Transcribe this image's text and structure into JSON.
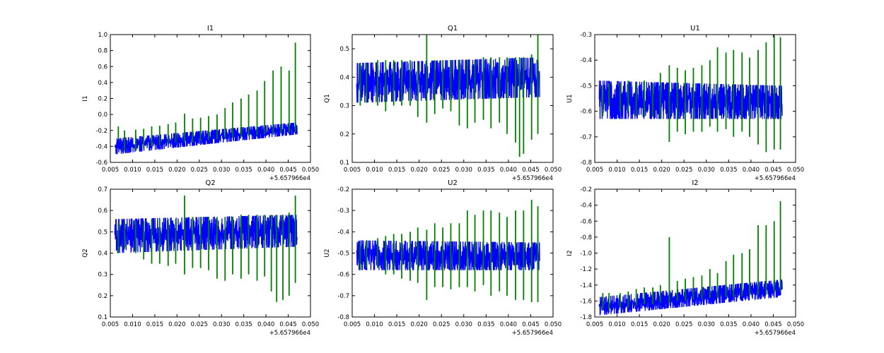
{
  "figure": {
    "x_offset_label": "+5.657966e4",
    "line_colors": {
      "primary": "#0000ff",
      "secondary": "#008000"
    }
  },
  "chart_data": [
    {
      "type": "line",
      "title": "I1",
      "ylabel": "I1",
      "xlim": [
        0.005,
        0.05
      ],
      "ylim": [
        -0.6,
        1.0
      ],
      "xticks": [
        "0.005",
        "0.010",
        "0.015",
        "0.020",
        "0.025",
        "0.030",
        "0.035",
        "0.040",
        "0.045",
        "0.050"
      ],
      "yticks": [
        "-0.6",
        "-0.4",
        "-0.2",
        "0.0",
        "0.2",
        "0.4",
        "0.6",
        "0.8",
        "1.0"
      ],
      "series": [
        {
          "values": {
            "x_range": [
              0.006,
              0.047
            ],
            "band_start": [
              -0.5,
              -0.3
            ],
            "band_end": [
              -0.25,
              -0.1
            ]
          }
        },
        {
          "values": {
            "spikes": [
              [
                0.0068,
                -0.3,
                -0.15
              ],
              [
                0.0082,
                -0.45,
                -0.2
              ],
              [
                0.0107,
                -0.45,
                -0.19
              ],
              [
                0.0125,
                -0.42,
                -0.18
              ],
              [
                0.0143,
                -0.4,
                -0.15
              ],
              [
                0.0161,
                -0.38,
                -0.14
              ],
              [
                0.018,
                -0.36,
                -0.12
              ],
              [
                0.0197,
                -0.35,
                -0.1
              ],
              [
                0.0217,
                -0.35,
                0.01
              ],
              [
                0.0235,
                -0.35,
                -0.05
              ],
              [
                0.0253,
                -0.33,
                -0.04
              ],
              [
                0.0271,
                -0.32,
                -0.02
              ],
              [
                0.029,
                -0.31,
                0.0
              ],
              [
                0.0308,
                -0.3,
                0.08
              ],
              [
                0.0325,
                -0.29,
                0.15
              ],
              [
                0.0344,
                -0.28,
                0.2
              ],
              [
                0.0361,
                -0.27,
                0.25
              ],
              [
                0.038,
                -0.26,
                0.3
              ],
              [
                0.0397,
                -0.25,
                0.42
              ],
              [
                0.0416,
                -0.24,
                0.55
              ],
              [
                0.0434,
                -0.23,
                0.6
              ],
              [
                0.0452,
                -0.22,
                0.55
              ],
              [
                0.0466,
                -0.22,
                0.9
              ]
            ]
          }
        }
      ]
    },
    {
      "type": "line",
      "title": "Q1",
      "ylabel": "Q1",
      "xlim": [
        0.005,
        0.05
      ],
      "ylim": [
        0.1,
        0.55
      ],
      "xticks": [
        "0.005",
        "0.010",
        "0.015",
        "0.020",
        "0.025",
        "0.030",
        "0.035",
        "0.040",
        "0.045",
        "0.050"
      ],
      "yticks": [
        "0.1",
        "0.2",
        "0.3",
        "0.4",
        "0.5"
      ],
      "series": [
        {
          "values": {
            "x_range": [
              0.006,
              0.047
            ],
            "band_start": [
              0.31,
              0.45
            ],
            "band_end": [
              0.33,
              0.47
            ]
          }
        },
        {
          "values": {
            "spikes": [
              [
                0.0068,
                0.3,
                0.45
              ],
              [
                0.0082,
                0.31,
                0.45
              ],
              [
                0.0107,
                0.3,
                0.46
              ],
              [
                0.0125,
                0.28,
                0.46
              ],
              [
                0.0143,
                0.3,
                0.46
              ],
              [
                0.0161,
                0.3,
                0.46
              ],
              [
                0.018,
                0.3,
                0.46
              ],
              [
                0.0197,
                0.26,
                0.45
              ],
              [
                0.0217,
                0.24,
                0.55
              ],
              [
                0.0235,
                0.27,
                0.46
              ],
              [
                0.0253,
                0.29,
                0.46
              ],
              [
                0.0271,
                0.28,
                0.46
              ],
              [
                0.029,
                0.23,
                0.46
              ],
              [
                0.0308,
                0.22,
                0.46
              ],
              [
                0.0325,
                0.24,
                0.46
              ],
              [
                0.0344,
                0.25,
                0.47
              ],
              [
                0.0361,
                0.22,
                0.47
              ],
              [
                0.038,
                0.24,
                0.47
              ],
              [
                0.0397,
                0.2,
                0.47
              ],
              [
                0.0416,
                0.17,
                0.47
              ],
              [
                0.0425,
                0.12,
                0.47
              ],
              [
                0.0434,
                0.13,
                0.47
              ],
              [
                0.0452,
                0.18,
                0.48
              ],
              [
                0.0466,
                0.2,
                0.55
              ]
            ]
          }
        }
      ]
    },
    {
      "type": "line",
      "title": "U1",
      "ylabel": "U1",
      "xlim": [
        0.005,
        0.05
      ],
      "ylim": [
        -0.8,
        -0.3
      ],
      "xticks": [
        "0.005",
        "0.010",
        "0.015",
        "0.020",
        "0.025",
        "0.030",
        "0.035",
        "0.040",
        "0.045",
        "0.050"
      ],
      "yticks": [
        "-0.8",
        "-0.7",
        "-0.6",
        "-0.5",
        "-0.4",
        "-0.3"
      ],
      "series": [
        {
          "values": {
            "x_range": [
              0.006,
              0.047
            ],
            "band_start": [
              -0.63,
              -0.48
            ],
            "band_end": [
              -0.63,
              -0.5
            ]
          }
        },
        {
          "values": {
            "spikes": [
              [
                0.0068,
                -0.62,
                -0.5
              ],
              [
                0.0082,
                -0.58,
                -0.49
              ],
              [
                0.0107,
                -0.6,
                -0.49
              ],
              [
                0.0125,
                -0.6,
                -0.48
              ],
              [
                0.0143,
                -0.62,
                -0.49
              ],
              [
                0.0161,
                -0.62,
                -0.48
              ],
              [
                0.018,
                -0.62,
                -0.49
              ],
              [
                0.0197,
                -0.63,
                -0.45
              ],
              [
                0.0217,
                -0.72,
                -0.42
              ],
              [
                0.0235,
                -0.68,
                -0.43
              ],
              [
                0.0253,
                -0.69,
                -0.44
              ],
              [
                0.0271,
                -0.68,
                -0.43
              ],
              [
                0.029,
                -0.68,
                -0.42
              ],
              [
                0.0308,
                -0.66,
                -0.4
              ],
              [
                0.0325,
                -0.68,
                -0.35
              ],
              [
                0.0344,
                -0.67,
                -0.37
              ],
              [
                0.0361,
                -0.7,
                -0.36
              ],
              [
                0.038,
                -0.68,
                -0.37
              ],
              [
                0.0397,
                -0.7,
                -0.39
              ],
              [
                0.0416,
                -0.73,
                -0.36
              ],
              [
                0.0434,
                -0.76,
                -0.33
              ],
              [
                0.0452,
                -0.75,
                -0.3
              ],
              [
                0.0466,
                -0.75,
                -0.31
              ]
            ]
          }
        }
      ]
    },
    {
      "type": "line",
      "title": "Q2",
      "ylabel": "Q2",
      "xlim": [
        0.005,
        0.05
      ],
      "ylim": [
        0.1,
        0.7
      ],
      "xticks": [
        "0.005",
        "0.010",
        "0.015",
        "0.020",
        "0.025",
        "0.030",
        "0.035",
        "0.040",
        "0.045",
        "0.050"
      ],
      "yticks": [
        "0.1",
        "0.2",
        "0.3",
        "0.4",
        "0.5",
        "0.6",
        "0.7"
      ],
      "series": [
        {
          "values": {
            "x_range": [
              0.006,
              0.047
            ],
            "band_start": [
              0.4,
              0.56
            ],
            "band_end": [
              0.43,
              0.58
            ]
          }
        },
        {
          "values": {
            "spikes": [
              [
                0.0068,
                0.4,
                0.54
              ],
              [
                0.0082,
                0.42,
                0.55
              ],
              [
                0.0107,
                0.4,
                0.55
              ],
              [
                0.0125,
                0.37,
                0.55
              ],
              [
                0.0143,
                0.35,
                0.56
              ],
              [
                0.0161,
                0.35,
                0.56
              ],
              [
                0.018,
                0.34,
                0.56
              ],
              [
                0.0197,
                0.35,
                0.56
              ],
              [
                0.0217,
                0.3,
                0.67
              ],
              [
                0.0235,
                0.33,
                0.57
              ],
              [
                0.0253,
                0.33,
                0.57
              ],
              [
                0.0271,
                0.32,
                0.57
              ],
              [
                0.029,
                0.28,
                0.57
              ],
              [
                0.0308,
                0.27,
                0.57
              ],
              [
                0.0325,
                0.3,
                0.57
              ],
              [
                0.0344,
                0.28,
                0.58
              ],
              [
                0.0361,
                0.3,
                0.58
              ],
              [
                0.038,
                0.27,
                0.58
              ],
              [
                0.0397,
                0.29,
                0.58
              ],
              [
                0.0412,
                0.22,
                0.58
              ],
              [
                0.0424,
                0.17,
                0.58
              ],
              [
                0.0438,
                0.18,
                0.58
              ],
              [
                0.0452,
                0.2,
                0.59
              ],
              [
                0.0466,
                0.26,
                0.67
              ]
            ]
          }
        }
      ]
    },
    {
      "type": "line",
      "title": "U2",
      "ylabel": "U2",
      "xlim": [
        0.005,
        0.05
      ],
      "ylim": [
        -0.8,
        -0.2
      ],
      "xticks": [
        "0.005",
        "0.010",
        "0.015",
        "0.020",
        "0.025",
        "0.030",
        "0.035",
        "0.040",
        "0.045",
        "0.050"
      ],
      "yticks": [
        "-0.8",
        "-0.7",
        "-0.6",
        "-0.5",
        "-0.4",
        "-0.3",
        "-0.2"
      ],
      "series": [
        {
          "values": {
            "x_range": [
              0.006,
              0.047
            ],
            "band_start": [
              -0.58,
              -0.44
            ],
            "band_end": [
              -0.58,
              -0.45
            ]
          }
        },
        {
          "values": {
            "spikes": [
              [
                0.0068,
                -0.58,
                -0.45
              ],
              [
                0.0082,
                -0.57,
                -0.44
              ],
              [
                0.0107,
                -0.57,
                -0.43
              ],
              [
                0.0125,
                -0.6,
                -0.42
              ],
              [
                0.0143,
                -0.6,
                -0.41
              ],
              [
                0.0161,
                -0.62,
                -0.41
              ],
              [
                0.018,
                -0.63,
                -0.4
              ],
              [
                0.0197,
                -0.64,
                -0.38
              ],
              [
                0.0217,
                -0.72,
                -0.39
              ],
              [
                0.0235,
                -0.66,
                -0.36
              ],
              [
                0.0253,
                -0.66,
                -0.38
              ],
              [
                0.0271,
                -0.67,
                -0.36
              ],
              [
                0.029,
                -0.66,
                -0.36
              ],
              [
                0.0308,
                -0.66,
                -0.3
              ],
              [
                0.0325,
                -0.68,
                -0.32
              ],
              [
                0.0344,
                -0.65,
                -0.3
              ],
              [
                0.0361,
                -0.7,
                -0.3
              ],
              [
                0.038,
                -0.68,
                -0.31
              ],
              [
                0.0397,
                -0.7,
                -0.33
              ],
              [
                0.0416,
                -0.72,
                -0.3
              ],
              [
                0.0434,
                -0.72,
                -0.3
              ],
              [
                0.0452,
                -0.73,
                -0.25
              ],
              [
                0.0466,
                -0.73,
                -0.28
              ]
            ]
          }
        }
      ]
    },
    {
      "type": "line",
      "title": "I2",
      "ylabel": "I2",
      "xlim": [
        0.005,
        0.05
      ],
      "ylim": [
        -1.8,
        -0.2
      ],
      "xticks": [
        "0.005",
        "0.010",
        "0.015",
        "0.020",
        "0.025",
        "0.030",
        "0.035",
        "0.040",
        "0.045",
        "0.050"
      ],
      "yticks": [
        "-1.8",
        "-1.6",
        "-1.4",
        "-1.2",
        "-1.0",
        "-0.8",
        "-0.6",
        "-0.4",
        "-0.2"
      ],
      "series": [
        {
          "values": {
            "x_range": [
              0.006,
              0.047
            ],
            "band_start": [
              -1.78,
              -1.55
            ],
            "band_end": [
              -1.55,
              -1.33
            ]
          }
        },
        {
          "values": {
            "spikes": [
              [
                0.0068,
                -1.7,
                -1.5
              ],
              [
                0.0082,
                -1.72,
                -1.5
              ],
              [
                0.0107,
                -1.68,
                -1.5
              ],
              [
                0.0125,
                -1.68,
                -1.48
              ],
              [
                0.0143,
                -1.66,
                -1.45
              ],
              [
                0.0161,
                -1.64,
                -1.43
              ],
              [
                0.018,
                -1.64,
                -1.43
              ],
              [
                0.0197,
                -1.62,
                -1.4
              ],
              [
                0.0217,
                -1.62,
                -0.8
              ],
              [
                0.0235,
                -1.6,
                -1.35
              ],
              [
                0.0253,
                -1.6,
                -1.32
              ],
              [
                0.0271,
                -1.58,
                -1.3
              ],
              [
                0.029,
                -1.57,
                -1.28
              ],
              [
                0.0308,
                -1.56,
                -1.2
              ],
              [
                0.0325,
                -1.56,
                -1.25
              ],
              [
                0.0344,
                -1.55,
                -1.1
              ],
              [
                0.0361,
                -1.55,
                -1.02
              ],
              [
                0.038,
                -1.54,
                -1.0
              ],
              [
                0.0397,
                -1.53,
                -0.95
              ],
              [
                0.0416,
                -1.52,
                -0.65
              ],
              [
                0.0434,
                -1.52,
                -0.65
              ],
              [
                0.0452,
                -1.5,
                -0.6
              ],
              [
                0.0466,
                -1.48,
                -0.35
              ]
            ]
          }
        }
      ]
    }
  ]
}
